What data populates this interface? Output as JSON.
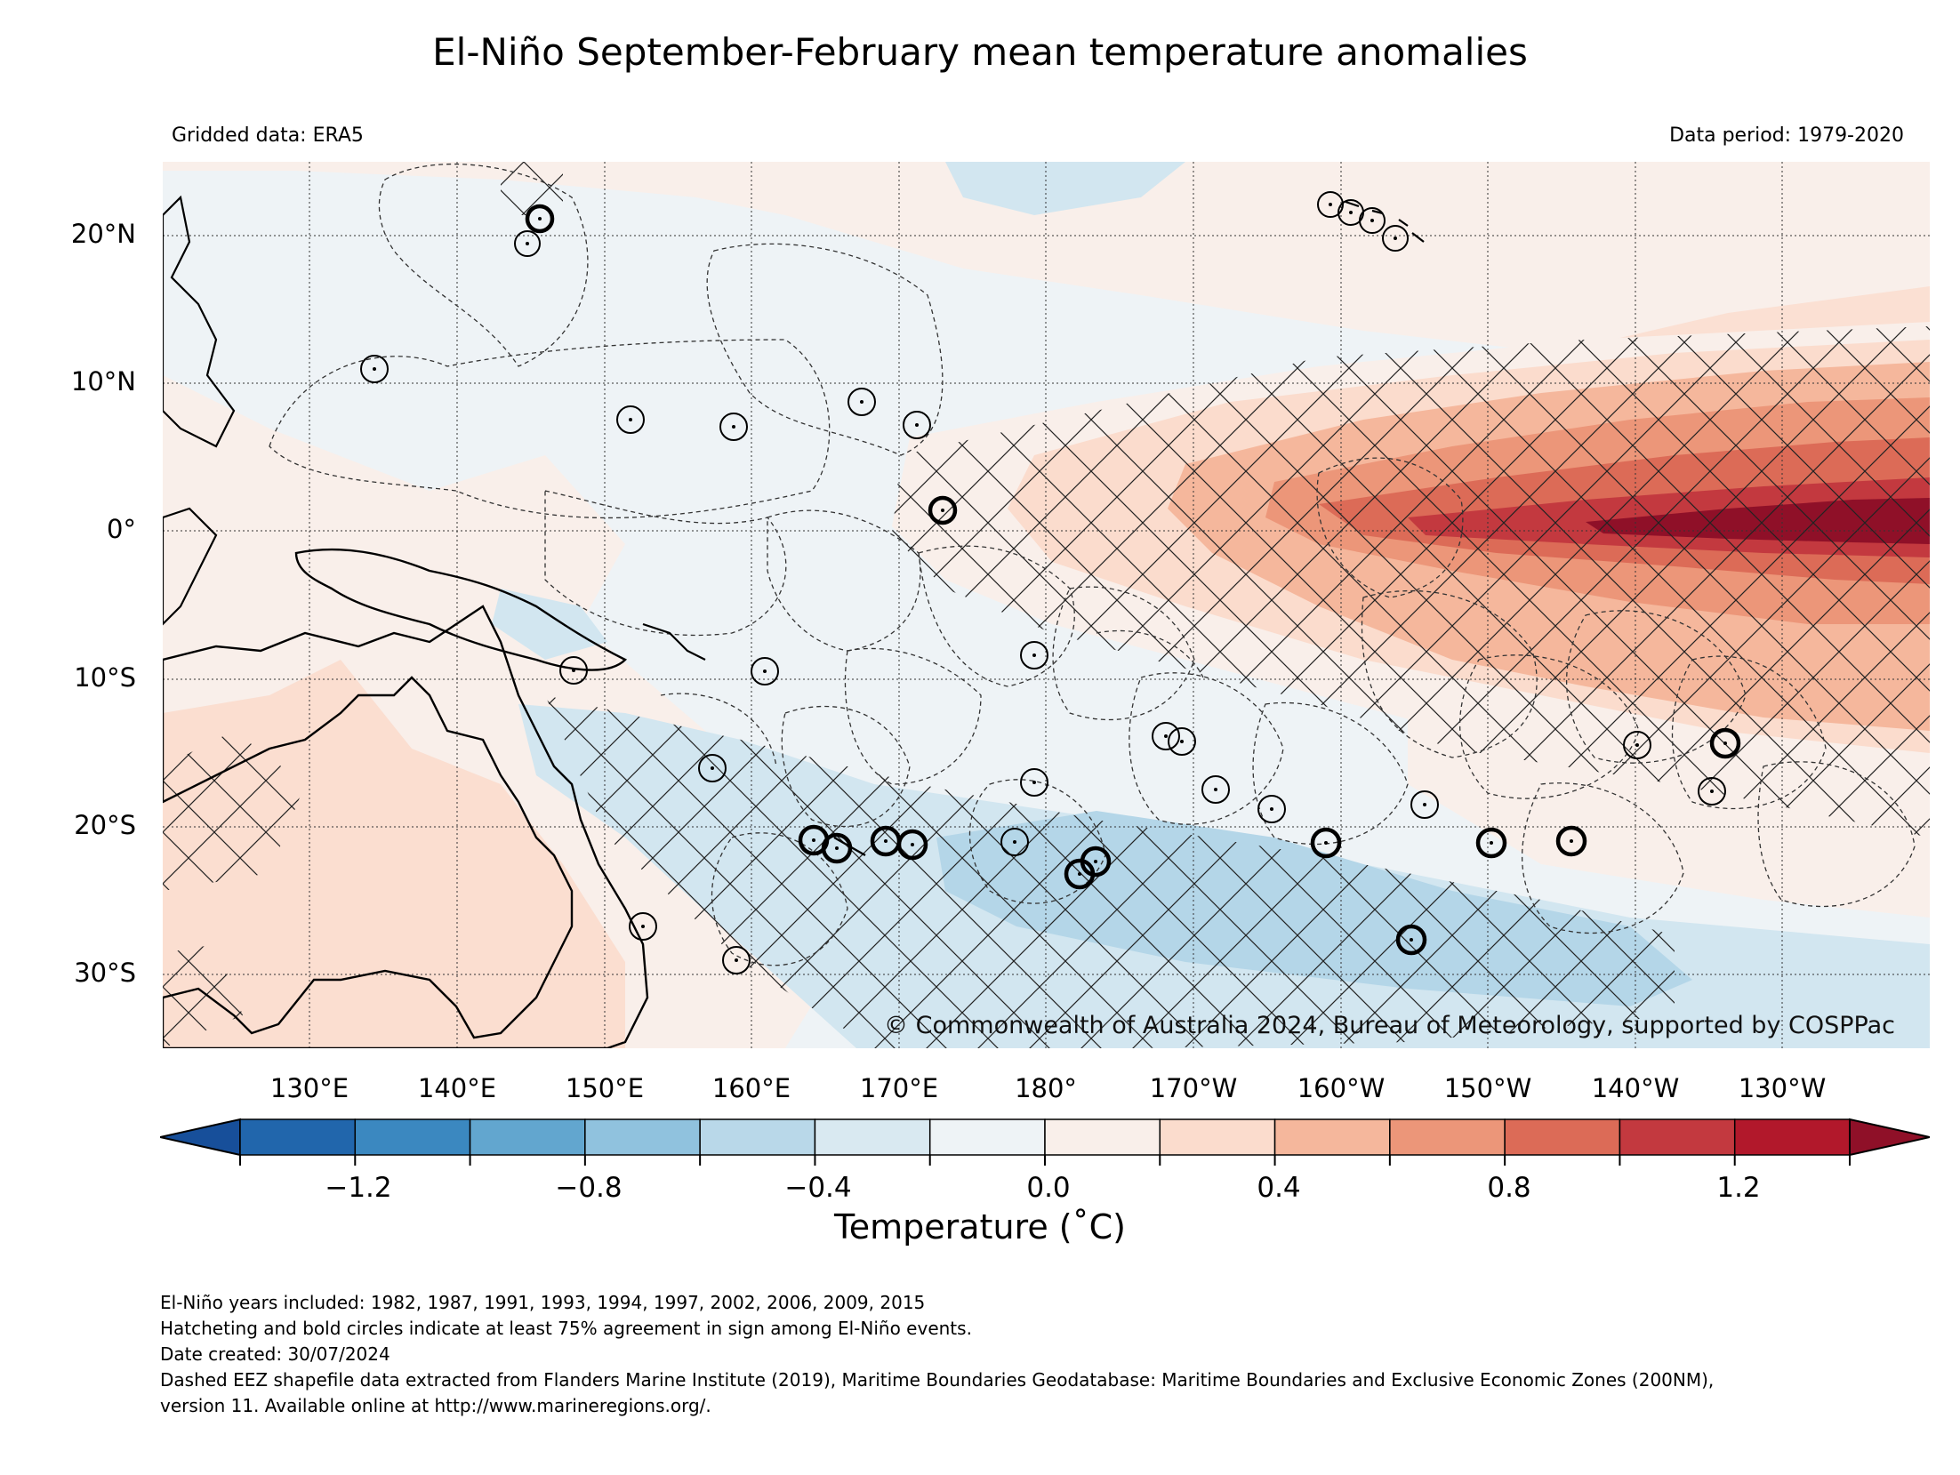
{
  "title": "El-Niño September-February mean temperature anomalies",
  "subtitle_left": "Gridded data: ERA5",
  "subtitle_right": "Data period: 1979-2020",
  "copyright": "© Commonwealth of Australia 2024, Bureau of Meteorology, supported by COSPPac",
  "map": {
    "lat_range": [
      -35,
      25
    ],
    "lon_range": [
      120,
      240
    ],
    "lat_labels": [
      "20°N",
      "10°N",
      "0°",
      "10°S",
      "20°S",
      "30°S"
    ],
    "lat_values": [
      20,
      10,
      0,
      -10,
      -20,
      -30
    ],
    "lon_labels": [
      "130°E",
      "140°E",
      "150°E",
      "160°E",
      "170°E",
      "180°",
      "170°W",
      "160°W",
      "150°W",
      "140°W",
      "130°W"
    ],
    "lon_values": [
      130,
      140,
      150,
      160,
      170,
      180,
      190,
      200,
      210,
      220,
      230
    ],
    "features": [
      "temperature-anomaly-field",
      "coastlines",
      "eez-boundaries",
      "hatching-75pct-agreement",
      "island-circles",
      "bold-circles-75pct-agreement"
    ],
    "colors": {
      "anom_neg_0_2": "#eef3f6",
      "anom_pos_0_2": "#f9efea",
      "anom_neg_0_4": "#d2e6f0",
      "anom_neg_0_6": "#b4d6e8",
      "anom_pos_0_4": "#fbdccd",
      "anom_pos_0_6": "#f5b79c",
      "anom_pos_0_8": "#ec9679",
      "anom_pos_1_0": "#dc6b57",
      "anom_pos_1_2": "#c3393f",
      "anom_pos_max": "#8f1028"
    }
  },
  "colorbar": {
    "label": "Temperature (˚C)",
    "min": -1.4,
    "max": 1.4,
    "step": 0.2,
    "tick_labels": [
      "−1.2",
      "−0.8",
      "−0.4",
      "0.0",
      "0.4",
      "0.8",
      "1.2"
    ],
    "tick_values": [
      -1.2,
      -0.8,
      -0.4,
      0.0,
      0.4,
      0.8,
      1.2
    ],
    "colors": [
      "#2166ac",
      "#3b88c0",
      "#62a6cf",
      "#90c2de",
      "#b9d8e9",
      "#d9e9f1",
      "#eef3f6",
      "#f9efea",
      "#fbdccd",
      "#f5b79c",
      "#ec9679",
      "#dc6b57",
      "#c3393f",
      "#b2182b"
    ],
    "under_color": "#174f9a",
    "over_color": "#8f1028"
  },
  "notes": [
    "El-Niño years included: 1982, 1987, 1991, 1993, 1994, 1997, 2002, 2006, 2009, 2015",
    "Hatcheting and bold circles indicate at least 75% agreement in sign among El-Niño events.",
    "Date created: 30/07/2024",
    "Dashed EEZ shapefile data extracted from Flanders Marine Institute (2019), Maritime Boundaries Geodatabase: Maritime Boundaries and Exclusive Economic Zones (200NM),",
    "version 11. Available online at http://www.marineregions.org/."
  ]
}
